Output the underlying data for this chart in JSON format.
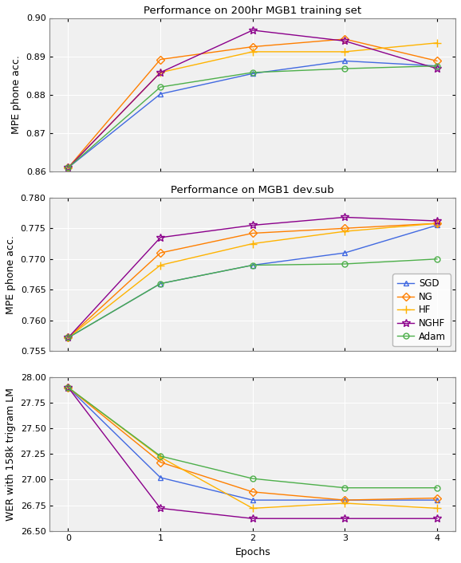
{
  "epochs": [
    0,
    1,
    2,
    3,
    4
  ],
  "plot1_title": "Performance on 200hr MGB1 training set",
  "plot1_ylabel": "MPE phone acc.",
  "plot1_ylim": [
    0.86,
    0.9
  ],
  "plot1_yticks": [
    0.86,
    0.87,
    0.88,
    0.89,
    0.9
  ],
  "plot1_data": {
    "SGD": [
      0.861,
      0.8802,
      0.8855,
      0.8888,
      0.8875
    ],
    "NG": [
      0.861,
      0.8892,
      0.8925,
      0.8945,
      0.8888
    ],
    "HF": [
      0.861,
      0.8858,
      0.8912,
      0.8912,
      0.8935
    ],
    "NGHF": [
      0.861,
      0.8858,
      0.8968,
      0.894,
      0.8868
    ],
    "Adam": [
      0.861,
      0.882,
      0.8858,
      0.8868,
      0.8875
    ]
  },
  "plot2_title": "Performance on MGB1 dev.sub",
  "plot2_ylabel": "MPE phone acc.",
  "plot2_ylim": [
    0.755,
    0.78
  ],
  "plot2_yticks": [
    0.755,
    0.76,
    0.765,
    0.77,
    0.775,
    0.78
  ],
  "plot2_data": {
    "SGD": [
      0.7572,
      0.766,
      0.769,
      0.771,
      0.7755
    ],
    "NG": [
      0.7572,
      0.771,
      0.7742,
      0.775,
      0.7758
    ],
    "HF": [
      0.7572,
      0.769,
      0.7725,
      0.7745,
      0.7758
    ],
    "NGHF": [
      0.7572,
      0.7735,
      0.7755,
      0.7768,
      0.7762
    ],
    "Adam": [
      0.7572,
      0.766,
      0.769,
      0.7692,
      0.77
    ]
  },
  "plot3_ylabel": "WER with 158k trigram LM",
  "plot3_ylim": [
    26.5,
    28.0
  ],
  "plot3_yticks": [
    26.5,
    26.75,
    27.0,
    27.25,
    27.5,
    27.75,
    28.0
  ],
  "plot3_data": {
    "SGD": [
      27.9,
      27.02,
      26.8,
      26.8,
      26.8
    ],
    "NG": [
      27.9,
      27.17,
      26.88,
      26.8,
      26.82
    ],
    "HF": [
      27.9,
      27.22,
      26.72,
      26.77,
      26.72
    ],
    "NGHF": [
      27.9,
      26.72,
      26.62,
      26.62,
      26.62
    ],
    "Adam": [
      27.9,
      27.23,
      27.01,
      26.92,
      26.92
    ]
  },
  "plot3_xlabel": "Epochs",
  "bg_color": "#F0F0F0",
  "grid_color": "#FFFFFF",
  "series_styles": {
    "SGD": {
      "color": "#4169E1",
      "marker": "^",
      "markersize": 5,
      "linewidth": 1.0
    },
    "NG": {
      "color": "#FF7F00",
      "marker": "D",
      "markersize": 5,
      "linewidth": 1.0
    },
    "HF": {
      "color": "#FFB300",
      "marker": "+",
      "markersize": 7,
      "linewidth": 1.0
    },
    "NGHF": {
      "color": "#8B008B",
      "marker": "*",
      "markersize": 7,
      "linewidth": 1.0
    },
    "Adam": {
      "color": "#4DAF4A",
      "marker": "o",
      "markersize": 5,
      "linewidth": 1.0
    }
  }
}
